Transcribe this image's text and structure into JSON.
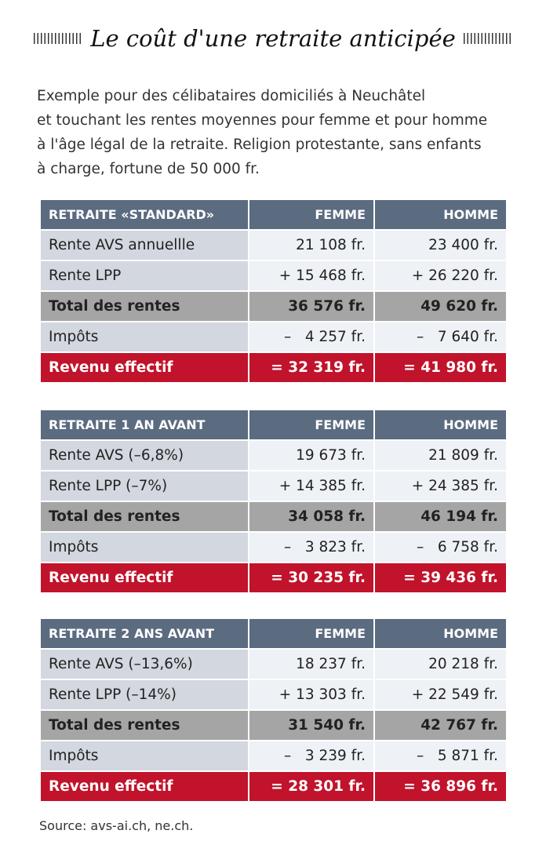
{
  "header": {
    "title": "Le coût d'une retraite anticipée",
    "intro": [
      "Exemple pour des célibataires domiciliés à Neuchâtel",
      "et touchant les rentes moyennes pour femme et pour homme",
      "à l'âge légal de la retraite. Religion protestante, sans enfants",
      "à charge, fortune de 50 000 fr."
    ]
  },
  "tables": [
    {
      "header": [
        "RETRAITE «STANDARD»",
        "FEMME",
        "HOMME"
      ],
      "rows": [
        [
          "Rente AVS annuellle",
          "21 108 fr.",
          "23 400 fr."
        ],
        [
          "Rente LPP",
          "+ 15 468 fr.",
          "+ 26 220 fr."
        ],
        [
          "Total des rentes",
          "36 576 fr.",
          "49 620 fr."
        ],
        [
          "Impôts",
          "–   4 257 fr.",
          "–   7 640 fr."
        ],
        [
          "Revenu effectif",
          "= 32 319 fr.",
          "= 41 980 fr."
        ]
      ]
    },
    {
      "header": [
        "RETRAITE 1 AN AVANT",
        "FEMME",
        "HOMME"
      ],
      "rows": [
        [
          "Rente AVS (–6,8%)",
          "19 673 fr.",
          "21 809 fr."
        ],
        [
          "Rente LPP (–7%)",
          "+ 14 385 fr.",
          "+ 24 385 fr."
        ],
        [
          "Total des rentes",
          "34 058 fr.",
          "46 194 fr."
        ],
        [
          "Impôts",
          "–   3 823 fr.",
          "–   6 758 fr."
        ],
        [
          "Revenu effectif",
          "= 30 235 fr.",
          "= 39 436 fr."
        ]
      ]
    },
    {
      "header": [
        "RETRAITE 2 ANS AVANT",
        "FEMME",
        "HOMME"
      ],
      "rows": [
        [
          "Rente AVS (–13,6%)",
          "18 237 fr.",
          "20 218 fr."
        ],
        [
          "Rente LPP (–14%)",
          "+ 13 303 fr.",
          "+ 22 549 fr."
        ],
        [
          "Total des rentes",
          "31 540 fr.",
          "42 767 fr."
        ],
        [
          "Impôts",
          "–   3 239 fr.",
          "–   5 871 fr."
        ],
        [
          "Revenu effectif",
          "= 28 301 fr.",
          "= 36 896 fr."
        ]
      ]
    }
  ],
  "source": "Source: avs-ai.ch, ne.ch."
}
